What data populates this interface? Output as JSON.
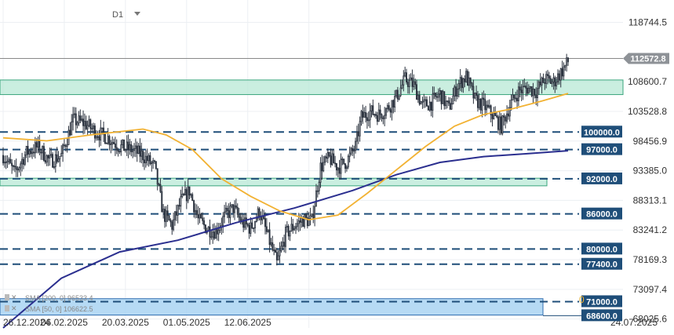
{
  "toolbar": {
    "timeframe": "D1"
  },
  "price_tag": "112572.8",
  "zone_marker": "0",
  "indicators": [
    {
      "label": "SMA [200, 0] 96533.4",
      "color": "#2b2f8f"
    },
    {
      "label": "SMA [50, 0] 106622.5",
      "color": "#f2b233"
    }
  ],
  "colors": {
    "up": "#ffffff",
    "down": "#2d3440",
    "wick": "#2d3440",
    "sma200": "#2b2f8f",
    "sma50": "#f2b233",
    "zone_green": "#b8e8d6",
    "zone_blue": "#a9d4f2",
    "level": "#1f4e79"
  },
  "chart_data": {
    "type": "candlestick",
    "timeframe": "D1",
    "y_ticks": [
      "118744.5",
      "108600.7",
      "103528.8",
      "98456.9",
      "93385.0",
      "88313.1",
      "83241.2",
      "78169.3",
      "73097.4",
      "68025.6"
    ],
    "x_ticks": [
      "26.12.2024",
      "06.02.2025",
      "20.03.2025",
      "01.05.2025",
      "12.06.2025",
      "24.07.2025"
    ],
    "ylim": [
      66500,
      121500
    ],
    "last_price": 112572.8,
    "levels": [
      {
        "label": "100000.0",
        "value": 100000
      },
      {
        "label": "97000.0",
        "value": 97000
      },
      {
        "label": "92000.0",
        "value": 92000
      },
      {
        "label": "86000.0",
        "value": 86000
      },
      {
        "label": "80000.0",
        "value": 80000
      },
      {
        "label": "77400.0",
        "value": 77400
      },
      {
        "label": "71000.0",
        "value": 71000
      },
      {
        "label": "68600.0",
        "value": 68600
      }
    ],
    "zones": [
      {
        "kind": "green",
        "from": 106400,
        "to": 108900
      },
      {
        "kind": "green",
        "from": 90800,
        "to": 92100
      },
      {
        "kind": "blue",
        "from": 68700,
        "to": 71500
      }
    ],
    "price_path": [
      [
        0,
        96000
      ],
      [
        8,
        93000
      ],
      [
        16,
        96500
      ],
      [
        24,
        97500
      ],
      [
        32,
        95000
      ],
      [
        40,
        96000
      ],
      [
        48,
        102000
      ],
      [
        56,
        101500
      ],
      [
        64,
        100000
      ],
      [
        72,
        99000
      ],
      [
        80,
        97500
      ],
      [
        88,
        97000
      ],
      [
        96,
        96000
      ],
      [
        104,
        94000
      ],
      [
        110,
        86000
      ],
      [
        116,
        84000
      ],
      [
        122,
        88000
      ],
      [
        128,
        90000
      ],
      [
        134,
        85000
      ],
      [
        140,
        83500
      ],
      [
        146,
        83000
      ],
      [
        152,
        85500
      ],
      [
        158,
        87000
      ],
      [
        164,
        84500
      ],
      [
        170,
        83500
      ],
      [
        176,
        86500
      ],
      [
        182,
        82000
      ],
      [
        188,
        77500
      ],
      [
        194,
        82500
      ],
      [
        200,
        84000
      ],
      [
        206,
        85000
      ],
      [
        212,
        84800
      ],
      [
        218,
        94000
      ],
      [
        224,
        95500
      ],
      [
        230,
        94000
      ],
      [
        236,
        95000
      ],
      [
        242,
        97500
      ],
      [
        246,
        102500
      ],
      [
        252,
        103500
      ],
      [
        258,
        103000
      ],
      [
        264,
        104000
      ],
      [
        270,
        106000
      ],
      [
        276,
        109000
      ],
      [
        282,
        108000
      ],
      [
        288,
        104500
      ],
      [
        294,
        105000
      ],
      [
        300,
        106500
      ],
      [
        306,
        104000
      ],
      [
        312,
        108000
      ],
      [
        318,
        109500
      ],
      [
        324,
        105500
      ],
      [
        330,
        104500
      ],
      [
        336,
        103000
      ],
      [
        342,
        101000
      ],
      [
        348,
        104500
      ],
      [
        354,
        107000
      ],
      [
        360,
        107500
      ],
      [
        366,
        107000
      ],
      [
        372,
        109000
      ],
      [
        378,
        108500
      ],
      [
        384,
        110500
      ],
      [
        388,
        112000
      ]
    ],
    "sma50": [
      [
        0,
        99000
      ],
      [
        30,
        98500
      ],
      [
        60,
        99500
      ],
      [
        96,
        100500
      ],
      [
        112,
        99500
      ],
      [
        130,
        97000
      ],
      [
        150,
        92000
      ],
      [
        170,
        89000
      ],
      [
        190,
        86500
      ],
      [
        210,
        85000
      ],
      [
        230,
        85800
      ],
      [
        250,
        89500
      ],
      [
        270,
        93500
      ],
      [
        290,
        97500
      ],
      [
        310,
        101000
      ],
      [
        330,
        103000
      ],
      [
        350,
        104000
      ],
      [
        370,
        105300
      ],
      [
        388,
        106600
      ]
    ],
    "sma200": [
      [
        0,
        66500
      ],
      [
        40,
        75000
      ],
      [
        80,
        79500
      ],
      [
        120,
        81500
      ],
      [
        160,
        84500
      ],
      [
        200,
        87000
      ],
      [
        240,
        90000
      ],
      [
        270,
        92700
      ],
      [
        300,
        94800
      ],
      [
        330,
        95800
      ],
      [
        360,
        96300
      ],
      [
        388,
        96800
      ]
    ],
    "x_tick_days": [
      0,
      42,
      84,
      126,
      168,
      210
    ]
  }
}
